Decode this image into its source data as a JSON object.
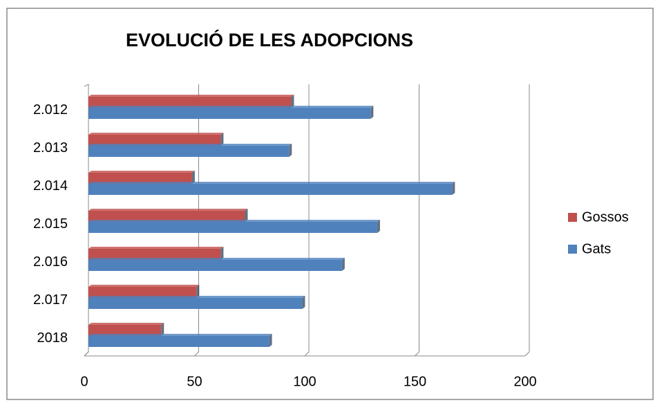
{
  "chart_data": {
    "type": "bar",
    "orientation": "horizontal",
    "title": "EVOLUCIÓ DE LES ADOPCIONS",
    "categories": [
      "2.012",
      "2.013",
      "2.014",
      "2.015",
      "2.016",
      "2.017",
      "2018"
    ],
    "series": [
      {
        "name": "Gossos",
        "color": "#c0504d",
        "values": [
          92,
          60,
          47,
          71,
          60,
          49,
          33
        ]
      },
      {
        "name": "Gats",
        "color": "#4f81bd",
        "values": [
          128,
          91,
          165,
          131,
          115,
          97,
          82
        ]
      }
    ],
    "xlim": [
      0,
      200
    ],
    "xticks": [
      0,
      50,
      100,
      150,
      200
    ],
    "grid": true,
    "legend": "right"
  }
}
